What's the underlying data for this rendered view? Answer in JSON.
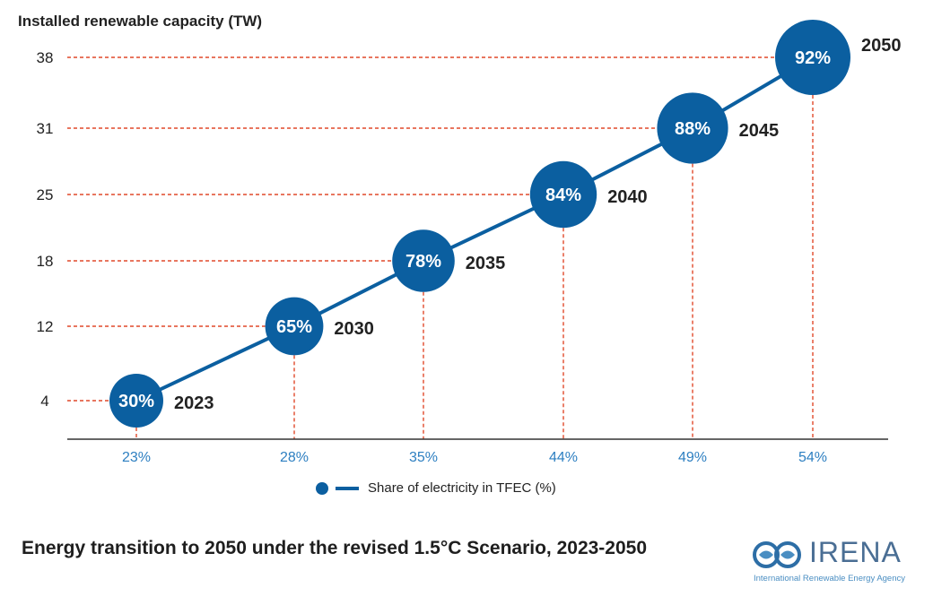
{
  "chart_data": {
    "type": "scatter",
    "ylabel": "Installed renewable capacity (TW)",
    "yticks": [
      4,
      12,
      18,
      25,
      31,
      38
    ],
    "xticks": [
      "23%",
      "28%",
      "35%",
      "44%",
      "49%",
      "54%"
    ],
    "points": [
      {
        "x": "23%",
        "y": 4,
        "share": "30%",
        "year": "2023"
      },
      {
        "x": "28%",
        "y": 12,
        "share": "65%",
        "year": "2030"
      },
      {
        "x": "35%",
        "y": 18,
        "share": "78%",
        "year": "2035"
      },
      {
        "x": "44%",
        "y": 25,
        "share": "84%",
        "year": "2040"
      },
      {
        "x": "49%",
        "y": 31,
        "share": "88%",
        "year": "2045"
      },
      {
        "x": "54%",
        "y": 38,
        "share": "92%",
        "year": "2050"
      }
    ],
    "legend": "Share of electricity in TFEC (%)",
    "legend_position": "bottom",
    "title": "Energy transition to 2050 under the revised 1.5°C Scenario, 2023-2050",
    "colors": {
      "marker": "#0b5fa0",
      "guide": "#e0492a",
      "xtick": "#2d7fc1",
      "axis": "#333333"
    }
  },
  "brand": {
    "name": "IRENA",
    "subtitle": "International Renewable Energy Agency",
    "logo_icon": "irena-logo-icon"
  }
}
